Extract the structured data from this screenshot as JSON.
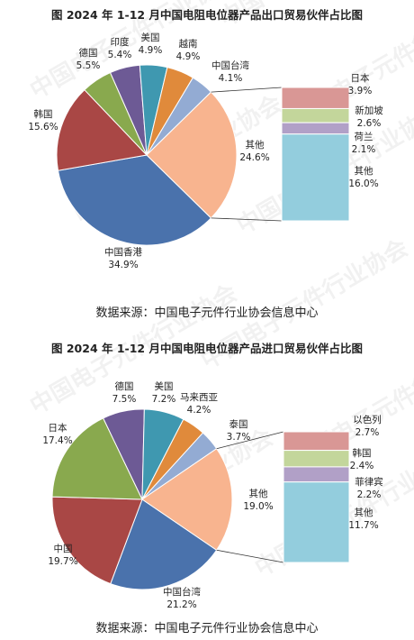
{
  "charts": [
    {
      "title": "图    2024 年 1-12 月中国电阻电位器产品出口贸易伙伴占比图",
      "source": "数据来源：中国电子元件行业协会信息中心"
    },
    {
      "title": "图    2024 年 1-12 月中国电阻电位器产品进口贸易伙伴占比图",
      "source": "数据来源：中国电子元件行业协会信息中心"
    }
  ],
  "watermark": "中国电子元件行业协会",
  "chart_data": [
    {
      "type": "pie",
      "title": "2024 年 1-12 月中国电阻电位器产品出口贸易伙伴占比图",
      "slices": [
        {
          "label": "中国香港",
          "value": 34.9,
          "display": "34.9%",
          "color": "#4a72ac"
        },
        {
          "label": "韩国",
          "value": 15.6,
          "display": "15.6%",
          "color": "#a94745"
        },
        {
          "label": "德国",
          "value": 5.5,
          "display": "5.5%",
          "color": "#89a94e"
        },
        {
          "label": "印度",
          "value": 5.4,
          "display": "5.4%",
          "color": "#6d5a95"
        },
        {
          "label": "美国",
          "value": 4.9,
          "display": "4.9%",
          "color": "#3f98b0"
        },
        {
          "label": "越南",
          "value": 4.9,
          "display": "4.9%",
          "color": "#e08a3b"
        },
        {
          "label": "中国台湾",
          "value": 4.1,
          "display": "4.1%",
          "color": "#93abd3"
        },
        {
          "label": "其他",
          "value": 24.6,
          "display": "24.6%",
          "color": "#f8b48f"
        }
      ],
      "breakdown": [
        {
          "label": "日本",
          "value": 3.9,
          "display": "3.9%",
          "color": "#d99795"
        },
        {
          "label": "新加坡",
          "value": 2.6,
          "display": "2.6%",
          "color": "#c3d69b"
        },
        {
          "label": "荷兰",
          "value": 2.1,
          "display": "2.1%",
          "color": "#b1a0c7"
        },
        {
          "label": "其他",
          "value": 16.0,
          "display": "16.0%",
          "color": "#93cddd"
        }
      ]
    },
    {
      "type": "pie",
      "title": "2024 年 1-12 月中国电阻电位器产品进口贸易伙伴占比图",
      "slices": [
        {
          "label": "中国台湾",
          "value": 21.2,
          "display": "21.2%",
          "color": "#4a72ac"
        },
        {
          "label": "中国",
          "value": 19.7,
          "display": "19.7%",
          "color": "#a94745"
        },
        {
          "label": "日本",
          "value": 17.4,
          "display": "17.4%",
          "color": "#89a94e"
        },
        {
          "label": "德国",
          "value": 7.5,
          "display": "7.5%",
          "color": "#6d5a95"
        },
        {
          "label": "美国",
          "value": 7.2,
          "display": "7.2%",
          "color": "#3f98b0"
        },
        {
          "label": "马来西亚",
          "value": 4.2,
          "display": "4.2%",
          "color": "#e08a3b"
        },
        {
          "label": "泰国",
          "value": 3.7,
          "display": "3.7%",
          "color": "#93abd3"
        },
        {
          "label": "其他",
          "value": 19.0,
          "display": "19.0%",
          "color": "#f8b48f"
        }
      ],
      "breakdown": [
        {
          "label": "以色列",
          "value": 2.7,
          "display": "2.7%",
          "color": "#d99795"
        },
        {
          "label": "韩国",
          "value": 2.4,
          "display": "2.4%",
          "color": "#c3d69b"
        },
        {
          "label": "菲律宾",
          "value": 2.2,
          "display": "2.2%",
          "color": "#b1a0c7"
        },
        {
          "label": "其他",
          "value": 11.7,
          "display": "11.7%",
          "color": "#93cddd"
        }
      ]
    }
  ]
}
